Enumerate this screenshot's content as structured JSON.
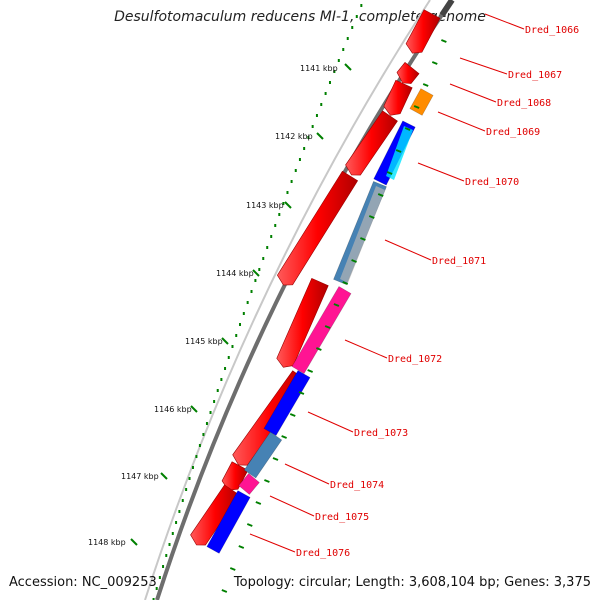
{
  "title": "Desulfotomaculum reducens MI-1, complete genome",
  "accession": "Accession: NC_009253",
  "summary": "Topology: circular; Length: 3,608,104 bp; Genes: 3,375",
  "colors": {
    "backbone": "#6e6e6e",
    "forward": "#ff0000",
    "tick": "#008000",
    "label": "#e00000"
  },
  "ruler": [
    {
      "label": "1141 kbp"
    },
    {
      "label": "1142 kbp"
    },
    {
      "label": "1143 kbp"
    },
    {
      "label": "1144 kbp"
    },
    {
      "label": "1145 kbp"
    },
    {
      "label": "1146 kbp"
    },
    {
      "label": "1147 kbp"
    },
    {
      "label": "1148 kbp"
    }
  ],
  "genes": [
    {
      "label": "Dred_1066",
      "color": "#ff0000"
    },
    {
      "label": "Dred_1067",
      "color": "#ff0000"
    },
    {
      "label": "Dred_1068",
      "color": "#ff0000"
    },
    {
      "label": "Dred_1069",
      "color": "#ff8c00"
    },
    {
      "label": "Dred_1070",
      "color": "#0000ff"
    },
    {
      "label": "Dred_1071",
      "color": "#4682b4"
    },
    {
      "label": "Dred_1072",
      "color": "#ff1493"
    },
    {
      "label": "Dred_1073",
      "color": "#0000ff"
    },
    {
      "label": "Dred_1074",
      "color": "#4682b4"
    },
    {
      "label": "Dred_1075",
      "color": "#ff1493"
    },
    {
      "label": "Dred_1076",
      "color": "#0000ff"
    }
  ]
}
